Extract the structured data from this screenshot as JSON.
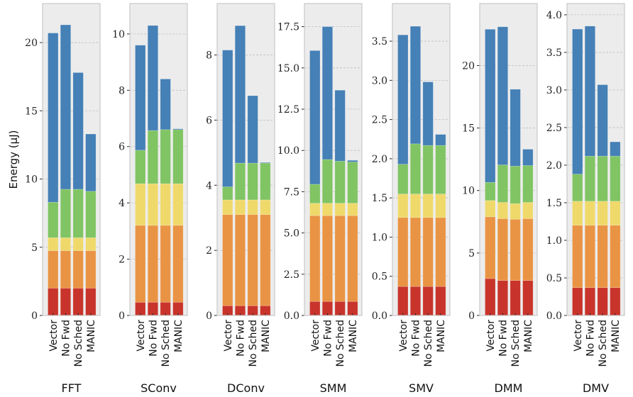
{
  "ylabel": "Energy (μJ)",
  "colors": {
    "layer1": "#c8342b",
    "layer2": "#e99444",
    "layer3": "#efd96a",
    "layer4": "#80c463",
    "layer5": "#4580b6",
    "panel_bg": "#ececec",
    "grid": "#c0c0c0"
  },
  "chart_data": [
    {
      "type": "bar",
      "stacked": true,
      "title": "FFT",
      "categories": [
        "Vector",
        "No Fwd",
        "No Sched",
        "MANIC"
      ],
      "ylim": [
        0,
        22.86
      ],
      "yticks": [
        0,
        5,
        10,
        15,
        20
      ],
      "ytick_labels": [
        "0",
        "5",
        "10",
        "15",
        "20"
      ],
      "grid": "y-dashed",
      "stacks": [
        [
          2.0,
          2.75,
          0.95,
          2.6,
          12.4
        ],
        [
          2.0,
          2.75,
          0.95,
          3.55,
          12.05
        ],
        [
          2.0,
          2.75,
          0.95,
          3.55,
          8.55
        ],
        [
          2.0,
          2.75,
          0.95,
          3.4,
          4.2
        ]
      ]
    },
    {
      "type": "bar",
      "stacked": true,
      "title": "SConv",
      "categories": [
        "Vector",
        "No Fwd",
        "No Sched",
        "MANIC"
      ],
      "ylim": [
        0,
        11.08
      ],
      "yticks": [
        0,
        2,
        4,
        6,
        8,
        10
      ],
      "ytick_labels": [
        "0",
        "2",
        "4",
        "6",
        "8",
        "10"
      ],
      "grid": "y-dashed",
      "stacks": [
        [
          0.47,
          2.73,
          1.48,
          1.19,
          3.73
        ],
        [
          0.47,
          2.73,
          1.48,
          1.89,
          3.73
        ],
        [
          0.47,
          2.73,
          1.48,
          1.92,
          1.8
        ],
        [
          0.47,
          2.73,
          1.48,
          1.92,
          0.03
        ]
      ]
    },
    {
      "type": "bar",
      "stacked": true,
      "title": "DConv",
      "categories": [
        "Vector",
        "No Fwd",
        "No Sched",
        "MANIC"
      ],
      "ylim": [
        0,
        9.58
      ],
      "yticks": [
        0,
        2,
        4,
        6,
        8
      ],
      "ytick_labels": [
        "0",
        "2",
        "4",
        "6",
        "8"
      ],
      "grid": "y-dashed",
      "stacks": [
        [
          0.3,
          2.8,
          0.45,
          0.4,
          4.2
        ],
        [
          0.3,
          2.8,
          0.45,
          1.13,
          4.22
        ],
        [
          0.3,
          2.8,
          0.45,
          1.13,
          2.07
        ],
        [
          0.3,
          2.8,
          0.45,
          1.13,
          0.02
        ]
      ]
    },
    {
      "type": "bar",
      "stacked": true,
      "title": "SMM",
      "categories": [
        "Vector",
        "No Fwd",
        "No Sched",
        "MANIC"
      ],
      "ylim": [
        0,
        18.9
      ],
      "yticks": [
        0,
        2.5,
        5,
        7.5,
        10,
        12.5,
        15,
        17.5
      ],
      "ytick_labels": [
        "0.0",
        "2.5",
        "5.0",
        "7.5",
        "10.0",
        "12.5",
        "15.0",
        "17.5"
      ],
      "grid": "y-dashed",
      "stacks": [
        [
          0.85,
          5.2,
          0.75,
          1.15,
          8.1
        ],
        [
          0.85,
          5.2,
          0.75,
          2.65,
          8.05
        ],
        [
          0.85,
          5.2,
          0.75,
          2.55,
          4.3
        ],
        [
          0.85,
          5.2,
          0.75,
          2.5,
          0.1
        ]
      ]
    },
    {
      "type": "bar",
      "stacked": true,
      "title": "SMV",
      "categories": [
        "Vector",
        "No Fwd",
        "No Sched",
        "MANIC"
      ],
      "ylim": [
        0,
        3.98
      ],
      "yticks": [
        0,
        0.5,
        1,
        1.5,
        2,
        2.5,
        3,
        3.5
      ],
      "ytick_labels": [
        "0.0",
        "0.5",
        "1.0",
        "1.5",
        "2.0",
        "2.5",
        "3.0",
        "3.5"
      ],
      "grid": "y-dashed",
      "stacks": [
        [
          0.37,
          0.88,
          0.3,
          0.38,
          1.65
        ],
        [
          0.37,
          0.88,
          0.3,
          0.64,
          1.5
        ],
        [
          0.37,
          0.88,
          0.3,
          0.62,
          0.81
        ],
        [
          0.37,
          0.88,
          0.3,
          0.62,
          0.14
        ]
      ]
    },
    {
      "type": "bar",
      "stacked": true,
      "title": "DMM",
      "categories": [
        "Vector",
        "No Fwd",
        "No Sched",
        "MANIC"
      ],
      "ylim": [
        0,
        24.96
      ],
      "yticks": [
        0,
        5,
        10,
        15,
        20
      ],
      "ytick_labels": [
        "0",
        "5",
        "10",
        "15",
        "20"
      ],
      "grid": "y-dashed",
      "stacks": [
        [
          2.95,
          4.95,
          1.3,
          1.45,
          12.25
        ],
        [
          2.8,
          4.95,
          1.3,
          3.0,
          11.05
        ],
        [
          2.8,
          4.9,
          1.25,
          3.0,
          6.15
        ],
        [
          2.8,
          4.95,
          1.3,
          2.95,
          1.3
        ]
      ]
    },
    {
      "type": "bar",
      "stacked": true,
      "title": "DMV",
      "categories": [
        "Vector",
        "No Fwd",
        "No Sched",
        "MANIC"
      ],
      "ylim": [
        0,
        4.15
      ],
      "yticks": [
        0,
        0.5,
        1,
        1.5,
        2,
        2.5,
        3,
        3.5,
        4
      ],
      "ytick_labels": [
        "0.0",
        "0.5",
        "1.0",
        "1.5",
        "2.0",
        "2.5",
        "3.0",
        "3.5",
        "4.0"
      ],
      "grid": "y-dashed",
      "stacks": [
        [
          0.37,
          0.83,
          0.32,
          0.36,
          1.93
        ],
        [
          0.37,
          0.83,
          0.32,
          0.6,
          1.73
        ],
        [
          0.37,
          0.83,
          0.32,
          0.6,
          0.95
        ],
        [
          0.37,
          0.83,
          0.32,
          0.6,
          0.19
        ]
      ]
    }
  ]
}
